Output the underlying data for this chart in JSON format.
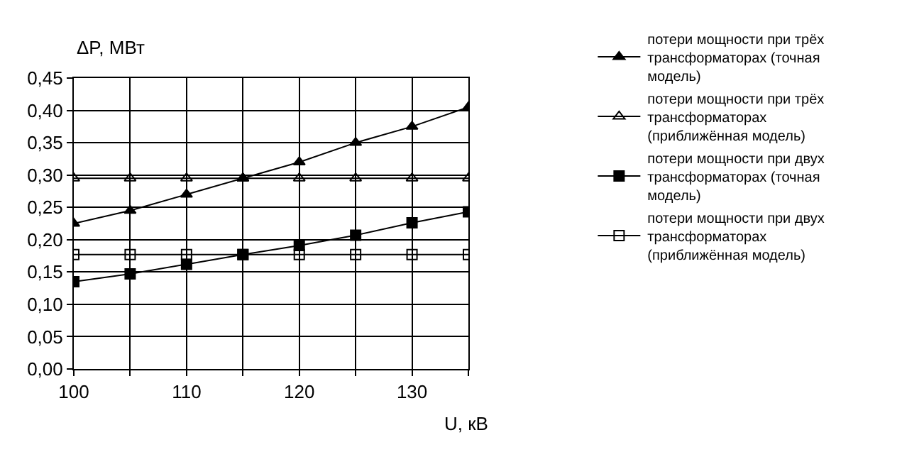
{
  "chart_data": {
    "type": "line",
    "xlabel": "U, кВ",
    "ylabel": "ΔP, МВт",
    "x": [
      100,
      105,
      110,
      115,
      120,
      125,
      130,
      135
    ],
    "series": [
      {
        "name": "потери мощности при трёх трансформаторах (точная модель)",
        "color": "#000000",
        "marker": "triangle",
        "values": [
          0.225,
          0.245,
          0.27,
          0.295,
          0.32,
          0.35,
          0.375,
          0.405
        ]
      },
      {
        "name": "потери мощности при трёх трансформаторах (приближённая модель)",
        "color": "#000000",
        "marker": "triangle-open",
        "values": [
          0.295,
          0.295,
          0.295,
          0.295,
          0.295,
          0.295,
          0.295,
          0.295
        ]
      },
      {
        "name": "потери мощности при двух трансформаторах (точная модель)",
        "color": "#000000",
        "marker": "square",
        "values": [
          0.135,
          0.147,
          0.162,
          0.177,
          0.191,
          0.207,
          0.226,
          0.243
        ]
      },
      {
        "name": "потери мощности при двух трансформаторах (приближённая модель)",
        "color": "#000000",
        "marker": "square-open",
        "values": [
          0.177,
          0.177,
          0.177,
          0.177,
          0.177,
          0.177,
          0.177,
          0.177
        ]
      }
    ],
    "xlim": [
      100,
      135
    ],
    "xticks": [
      100,
      {
        "value": 105,
        "label": null
      },
      110,
      {
        "value": 115,
        "label": null
      },
      120,
      {
        "value": 125,
        "label": null
      },
      130,
      {
        "value": 135,
        "label": null
      }
    ],
    "ylim": [
      0,
      0.45
    ],
    "yticks": [
      {
        "value": 0,
        "label": "0,00"
      },
      {
        "value": 0.05,
        "label": "0,05"
      },
      {
        "value": 0.1,
        "label": "0,10"
      },
      {
        "value": 0.15,
        "label": "0,15"
      },
      {
        "value": 0.2,
        "label": "0,20"
      },
      {
        "value": 0.25,
        "label": "0,25"
      },
      {
        "value": 0.3,
        "label": "0,30"
      },
      {
        "value": 0.35,
        "label": "0,35"
      },
      {
        "value": 0.4,
        "label": "0,40"
      },
      {
        "value": 0.45,
        "label": "0,45"
      }
    ],
    "grid": true,
    "legend": "right",
    "line_style": "solid"
  }
}
